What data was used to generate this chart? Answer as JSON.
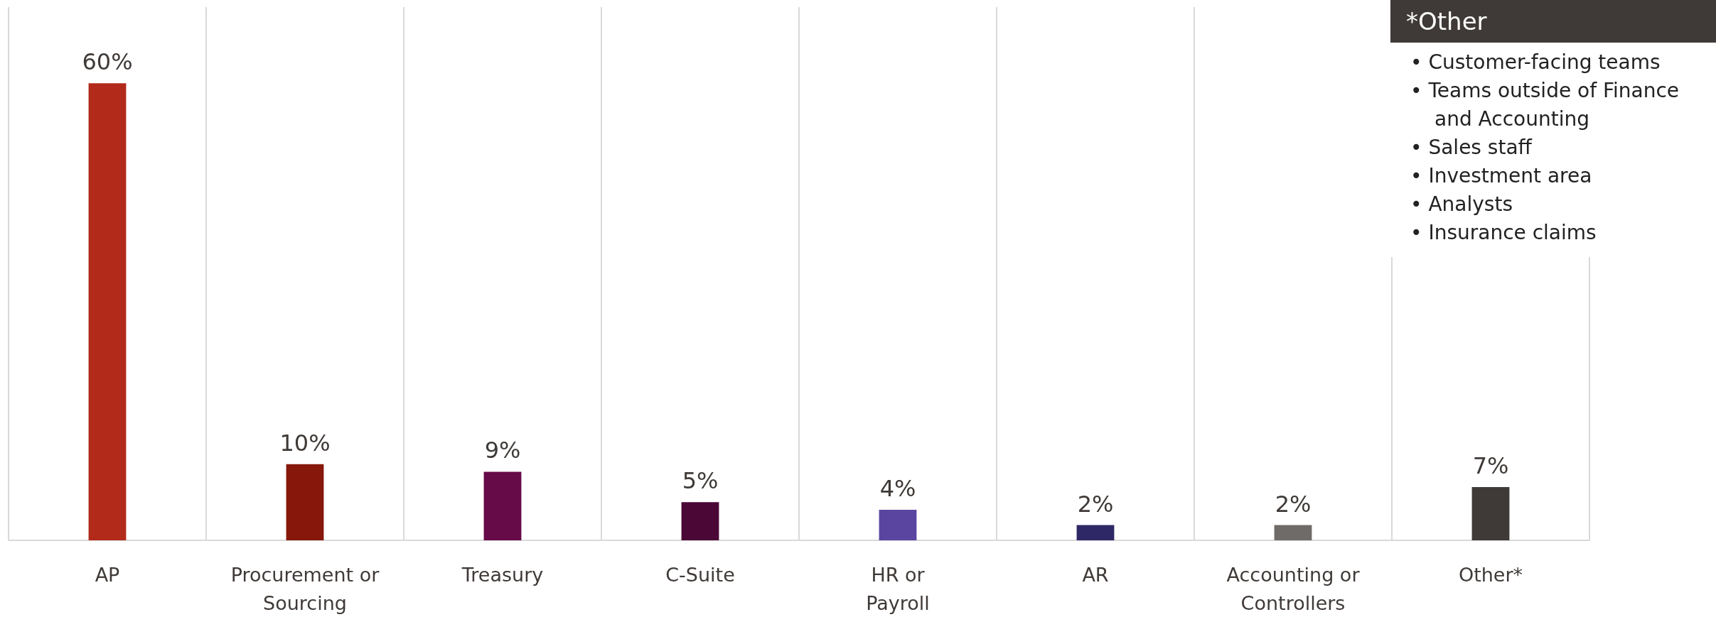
{
  "chart_data": {
    "type": "bar",
    "categories": [
      "AP",
      "Procurement or Sourcing",
      "Treasury",
      "C-Suite",
      "HR or Payroll",
      "AR",
      "Accounting or Controllers",
      "Other*"
    ],
    "values": [
      60,
      10,
      9,
      5,
      4,
      2,
      2,
      7
    ],
    "colors": [
      "#b22a1a",
      "#86170a",
      "#660a48",
      "#4b0736",
      "#5a46a0",
      "#2e2866",
      "#6f6b68",
      "#3f3a37"
    ],
    "value_labels": [
      "60%",
      "10%",
      "9%",
      "5%",
      "4%",
      "2%",
      "2%",
      "7%"
    ],
    "ylim": [
      0,
      70
    ],
    "grid": "x",
    "tick_labels": "x",
    "annotations": [
      "*Other",
      "• Customer-facing teams",
      "• Teams outside of Finance and Accounting",
      "• Sales staff",
      "• Investment area",
      "• Analysts",
      "• Insurance claims"
    ]
  }
}
